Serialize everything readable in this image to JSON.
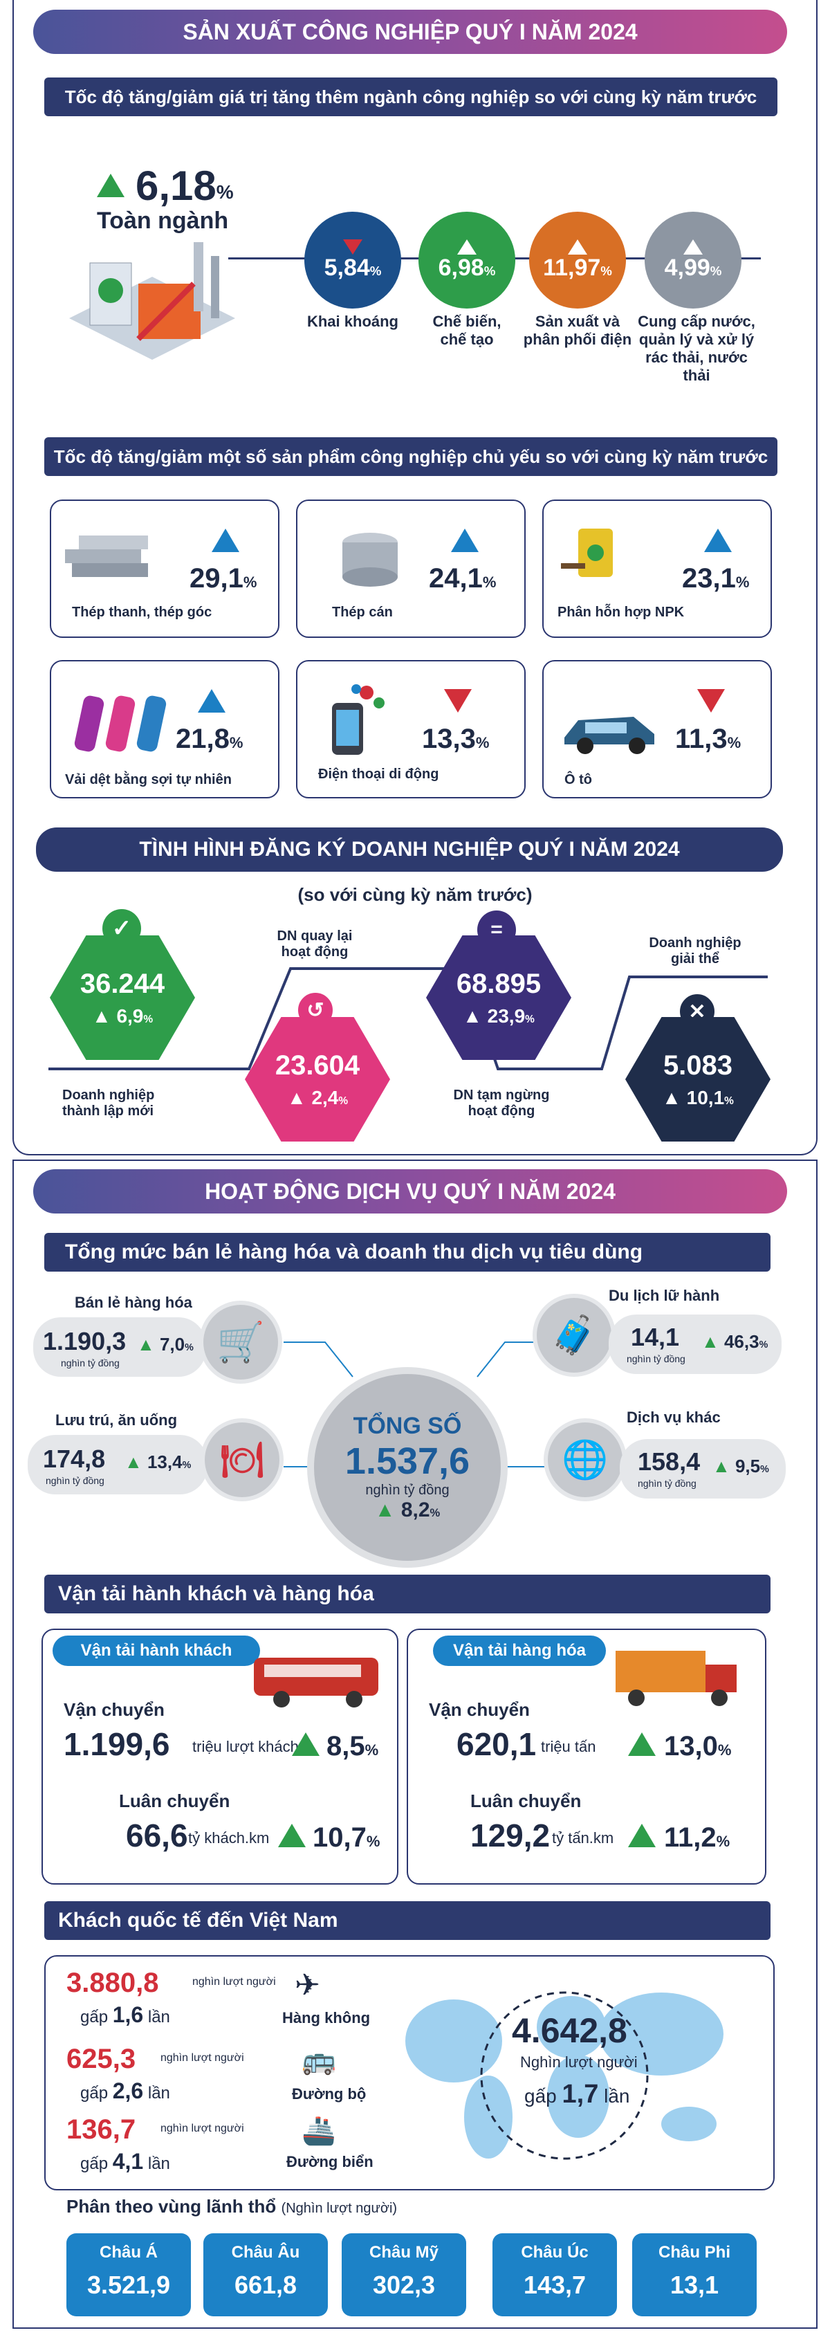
{
  "industry": {
    "title": "SẢN XUẤT CÔNG NGHIỆP QUÝ I NĂM 2024",
    "subtitle1": "Tốc độ tăng/giảm giá trị tăng thêm ngành công nghiệp so với cùng kỳ năm trước",
    "total_value": "6,18",
    "total_label": "Toàn ngành",
    "pct_sign": "%",
    "sectors": [
      {
        "value": "5,84",
        "label": "Khai khoáng",
        "color": "#1b4f8a",
        "trend": "down"
      },
      {
        "value": "6,98",
        "label": "Chế biến, chế tạo",
        "color": "#2e9d4a",
        "trend": "up"
      },
      {
        "value": "11,97",
        "label": "Sản xuất và phân phối điện",
        "color": "#d86f25",
        "trend": "up"
      },
      {
        "value": "4,99",
        "label": "Cung cấp nước, quản lý và xử lý rác thải, nước thải",
        "color": "#8d96a2",
        "trend": "up"
      }
    ],
    "subtitle2": "Tốc độ tăng/giảm một số sản phẩm công nghiệp chủ yếu so với cùng kỳ năm trước",
    "products": [
      {
        "label": "Thép thanh, thép góc",
        "value": "29,1",
        "trend": "up"
      },
      {
        "label": "Thép cán",
        "value": "24,1",
        "trend": "up"
      },
      {
        "label": "Phân hỗn hợp NPK",
        "value": "23,1",
        "trend": "up"
      },
      {
        "label": "Vải dệt bằng sợi tự nhiên",
        "value": "21,8",
        "trend": "up"
      },
      {
        "label": "Điện thoại di động",
        "value": "13,3",
        "trend": "down"
      },
      {
        "label": "Ô tô",
        "value": "11,3",
        "trend": "down"
      }
    ]
  },
  "business": {
    "title": "TÌNH HÌNH ĐĂNG KÝ DOANH NGHIỆP QUÝ I NĂM 2024",
    "subtitle": "(so với cùng kỳ năm trước)",
    "items": [
      {
        "value": "36.244",
        "change": "6,9",
        "label": "Doanh nghiệp thành lập mới",
        "color": "#2e9d4a"
      },
      {
        "value": "23.604",
        "change": "2,4",
        "label": "DN quay lại hoạt động",
        "color": "#e0387e"
      },
      {
        "value": "68.895",
        "change": "23,9",
        "label": "DN tạm ngừng hoạt động",
        "color": "#3b2f7a"
      },
      {
        "value": "5.083",
        "change": "10,1",
        "label": "Doanh nghiệp giải thể",
        "color": "#1f2d4a"
      }
    ]
  },
  "services": {
    "title": "HOẠT ĐỘNG DỊCH VỤ QUÝ I NĂM 2024",
    "retail_title": "Tổng mức bán lẻ hàng hóa và doanh thu dịch vụ tiêu dùng",
    "total_label": "TỔNG SỐ",
    "total_value": "1.537,6",
    "total_unit": "nghìn tỷ đồng",
    "total_change": "8,2",
    "unit": "nghìn tỷ đồng",
    "categories": [
      {
        "label": "Bán lẻ hàng hóa",
        "value": "1.190,3",
        "change": "7,0"
      },
      {
        "label": "Lưu trú, ăn uống",
        "value": "174,8",
        "change": "13,4"
      },
      {
        "label": "Du lịch lữ hành",
        "value": "14,1",
        "change": "46,3"
      },
      {
        "label": "Dịch vụ khác",
        "value": "158,4",
        "change": "9,5"
      }
    ]
  },
  "transport": {
    "title": "Vận tải hành khách và hàng hóa",
    "passenger": {
      "title": "Vận tải hành khách",
      "move_label": "Vận chuyển",
      "move_value": "1.199,6",
      "move_unit": "triệu lượt khách",
      "move_change": "8,5",
      "rot_label": "Luân chuyển",
      "rot_value": "66,6",
      "rot_unit": "tỷ khách.km",
      "rot_change": "10,7"
    },
    "cargo": {
      "title": "Vận tải hàng hóa",
      "move_label": "Vận chuyển",
      "move_value": "620,1",
      "move_unit": "triệu tấn",
      "move_change": "13,0",
      "rot_label": "Luân chuyển",
      "rot_value": "129,2",
      "rot_unit": "tỷ tấn.km",
      "rot_change": "11,2"
    }
  },
  "visitors": {
    "title": "Khách quốc tế đến Việt Nam",
    "unit_small": "nghìn lượt người",
    "modes": [
      {
        "value": "3.880,8",
        "times_label": "gấp",
        "times": "1,6",
        "times_suffix": "lần",
        "mode": "Hàng không"
      },
      {
        "value": "625,3",
        "times_label": "gấp",
        "times": "2,6",
        "times_suffix": "lần",
        "mode": "Đường bộ"
      },
      {
        "value": "136,7",
        "times_label": "gấp",
        "times": "4,1",
        "times_suffix": "lần",
        "mode": "Đường biển"
      }
    ],
    "total_value": "4.642,8",
    "total_unit": "Nghìn lượt người",
    "total_times_label": "gấp",
    "total_times": "1,7",
    "total_times_suffix": "lần",
    "region_title": "Phân theo vùng lãnh thổ",
    "region_unit": "(Nghìn lượt người)",
    "regions": [
      {
        "name": "Châu Á",
        "value": "3.521,9"
      },
      {
        "name": "Châu Âu",
        "value": "661,8"
      },
      {
        "name": "Châu Mỹ",
        "value": "302,3"
      },
      {
        "name": "Châu Úc",
        "value": "143,7"
      },
      {
        "name": "Châu Phi",
        "value": "13,1"
      }
    ]
  },
  "colors": {
    "navy": "#2d3a6e",
    "green": "#2e9d4a",
    "red": "#d22f3a",
    "blue": "#1c82c7",
    "pink": "#c03a8a"
  }
}
